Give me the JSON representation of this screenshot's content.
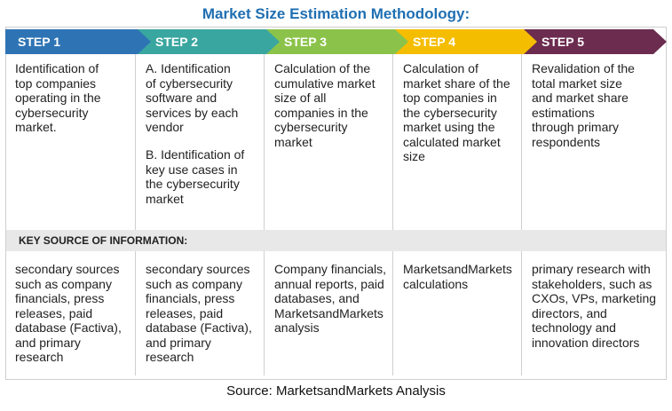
{
  "title": "Market Size Estimation Methodology:",
  "steps": [
    {
      "label": "STEP 1",
      "color": "#2e74b5",
      "description": "Identification of\ntop companies\noperating in the\ncybersecurity\nmarket.",
      "source": "secondary sources\nsuch as company\nfinancials, press\nreleases, paid\ndatabase (Factiva),\nand primary\nresearch"
    },
    {
      "label": "STEP 2",
      "color": "#3aa6a0",
      "description": "A. Identification\nof cybersecurity\nsoftware and\nservices by each\nvendor",
      "description_b": "B. Identification of\nkey use cases in\nthe cybersecurity\nmarket",
      "source": "secondary sources\nsuch as company\nfinancials, press\nreleases, paid\ndatabase (Factiva),\nand primary\nresearch"
    },
    {
      "label": "STEP 3",
      "color": "#8bc34a",
      "description": "Calculation of the\ncumulative market\nsize of all\ncompanies in the\ncybersecurity\nmarket",
      "source": "Company financials,\nannual reports, paid\ndatabases, and\nMarketsandMarkets\nanalysis"
    },
    {
      "label": "STEP 4",
      "color": "#f5bd00",
      "description": "Calculation of\nmarket share of the\ntop companies in\nthe cybersecurity\nmarket using the\ncalculated market\nsize",
      "source": "MarketsandMarkets\ncalculations"
    },
    {
      "label": "STEP 5",
      "color": "#6b2c4f",
      "description": "Revalidation of the\ntotal market size\nand market share\nestimations\nthrough primary\nrespondents",
      "source": "primary research with\nstakeholders, such as\nCXOs, VPs, marketing\ndirectors, and\ntechnology and\ninnovation directors"
    }
  ],
  "key_source_label": "KEY SOURCE OF INFORMATION:",
  "source_note": "Source: MarketsandMarkets Analysis"
}
